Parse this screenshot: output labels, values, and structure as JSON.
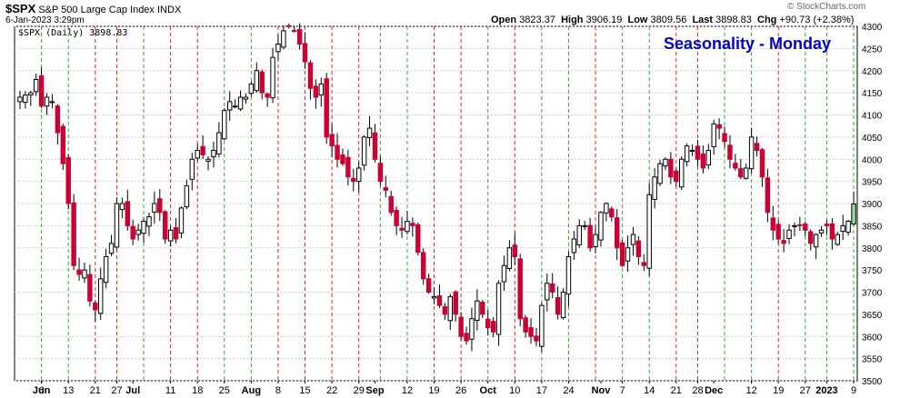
{
  "header": {
    "symbol": "$SPX",
    "description": "S&P 500 Large Cap Index",
    "exchange": "INDX",
    "datetime": "6-Jan-2023 3:29pm",
    "open_label": "Open",
    "open": "3823.37",
    "high_label": "High",
    "high": "3906.19",
    "low_label": "Low",
    "low": "3809.56",
    "last_label": "Last",
    "last": "3898.83",
    "chg_label": "Chg",
    "chg": "+90.73 (+2.38%)",
    "brand": "© StockCharts.com"
  },
  "legend": {
    "text": "$SPX (Daily) 3898.83"
  },
  "annotation": {
    "text": "Seasonality - Monday",
    "color": "#0000cc"
  },
  "colors": {
    "up_fill": "#ffffff",
    "down_fill": "#cc0033",
    "black_candle": "#000000",
    "last_candle": "#99dd99",
    "green_line": "#33aa33",
    "red_line": "#dd2222",
    "grid": "#cccccc"
  },
  "chart_data": {
    "type": "candlestick",
    "y_axis": {
      "min": 3500,
      "max": 4300,
      "ticks": [
        3500,
        3550,
        3600,
        3650,
        3700,
        3750,
        3800,
        3850,
        3900,
        3950,
        4000,
        4050,
        4100,
        4150,
        4200,
        4250,
        4300
      ],
      "position": "right"
    },
    "x_ticks": [
      {
        "label": "Jun",
        "i": 4,
        "bold": true
      },
      {
        "label": "6",
        "i": 4
      },
      {
        "label": "13",
        "i": 9
      },
      {
        "label": "21",
        "i": 14
      },
      {
        "label": "27",
        "i": 18
      },
      {
        "label": "Jul",
        "i": 21,
        "bold": true
      },
      {
        "label": "11",
        "i": 28
      },
      {
        "label": "18",
        "i": 33
      },
      {
        "label": "25",
        "i": 38
      },
      {
        "label": "Aug",
        "i": 43,
        "bold": true
      },
      {
        "label": "8",
        "i": 48
      },
      {
        "label": "15",
        "i": 53
      },
      {
        "label": "22",
        "i": 58
      },
      {
        "label": "29",
        "i": 63
      },
      {
        "label": "Sep",
        "i": 66,
        "bold": true
      },
      {
        "label": "12",
        "i": 72
      },
      {
        "label": "19",
        "i": 77
      },
      {
        "label": "26",
        "i": 82
      },
      {
        "label": "Oct",
        "i": 87,
        "bold": true
      },
      {
        "label": "10",
        "i": 92
      },
      {
        "label": "17",
        "i": 97
      },
      {
        "label": "24",
        "i": 102
      },
      {
        "label": "Nov",
        "i": 108,
        "bold": true
      },
      {
        "label": "7",
        "i": 112
      },
      {
        "label": "14",
        "i": 117
      },
      {
        "label": "21",
        "i": 122
      },
      {
        "label": "28",
        "i": 126
      },
      {
        "label": "Dec",
        "i": 129,
        "bold": true
      },
      {
        "label": "12",
        "i": 136
      },
      {
        "label": "19",
        "i": 141
      },
      {
        "label": "27",
        "i": 146
      },
      {
        "label": "2023",
        "i": 150,
        "bold": true
      },
      {
        "label": "9",
        "i": 155
      }
    ],
    "monday_markers": [
      {
        "i": 4,
        "type": "green"
      },
      {
        "i": 9,
        "type": "green"
      },
      {
        "i": 14,
        "type": "red"
      },
      {
        "i": 18,
        "type": "red"
      },
      {
        "i": 23,
        "type": "green"
      },
      {
        "i": 28,
        "type": "red"
      },
      {
        "i": 33,
        "type": "red"
      },
      {
        "i": 38,
        "type": "green"
      },
      {
        "i": 43,
        "type": "green"
      },
      {
        "i": 48,
        "type": "red"
      },
      {
        "i": 53,
        "type": "red"
      },
      {
        "i": 58,
        "type": "red"
      },
      {
        "i": 63,
        "type": "red"
      },
      {
        "i": 67,
        "type": "green"
      },
      {
        "i": 72,
        "type": "green"
      },
      {
        "i": 77,
        "type": "red"
      },
      {
        "i": 82,
        "type": "red"
      },
      {
        "i": 87,
        "type": "green"
      },
      {
        "i": 92,
        "type": "red"
      },
      {
        "i": 97,
        "type": "green"
      },
      {
        "i": 102,
        "type": "green"
      },
      {
        "i": 107,
        "type": "red"
      },
      {
        "i": 112,
        "type": "green"
      },
      {
        "i": 117,
        "type": "green"
      },
      {
        "i": 122,
        "type": "red"
      },
      {
        "i": 126,
        "type": "red"
      },
      {
        "i": 131,
        "type": "green"
      },
      {
        "i": 136,
        "type": "green"
      },
      {
        "i": 141,
        "type": "red"
      },
      {
        "i": 146,
        "type": "green"
      },
      {
        "i": 150,
        "type": "green"
      },
      {
        "i": 155,
        "type": "green"
      }
    ],
    "closes": [
      4140,
      4145,
      4150,
      4180,
      4120,
      4140,
      4130,
      4060,
      3990,
      3900,
      3760,
      3740,
      3750,
      3680,
      3660,
      3730,
      3780,
      3810,
      3900,
      3900,
      3850,
      3820,
      3840,
      3860,
      3870,
      3900,
      3880,
      3820,
      3840,
      3820,
      3890,
      3940,
      4000,
      4020,
      4010,
      4000,
      4020,
      4060,
      4110,
      4130,
      4120,
      4140,
      4140,
      4170,
      4200,
      4150,
      4140,
      4230,
      4260,
      4290,
      4300,
      4290,
      4260,
      4220,
      4160,
      4140,
      4170,
      4050,
      4030,
      4000,
      3990,
      3960,
      3950,
      3980,
      4050,
      4070,
      4000,
      3950,
      3930,
      3880,
      3850,
      3840,
      3860,
      3850,
      3790,
      3730,
      3700,
      3690,
      3670,
      3650,
      3690,
      3650,
      3600,
      3590,
      3640,
      3680,
      3650,
      3620,
      3610,
      3720,
      3760,
      3800,
      3780,
      3640,
      3610,
      3600,
      3590,
      3670,
      3720,
      3700,
      3650,
      3700,
      3780,
      3820,
      3850,
      3850,
      3800,
      3830,
      3880,
      3900,
      3870,
      3800,
      3760,
      3800,
      3830,
      3780,
      3760,
      3920,
      3960,
      3990,
      4000,
      3960,
      3950,
      4000,
      4030,
      4020,
      4000,
      3980,
      4020,
      4080,
      4070,
      4040,
      4000,
      3980,
      3960,
      3980,
      4050,
      4020,
      3960,
      3880,
      3840,
      3820,
      3810,
      3840,
      3850,
      3850,
      3840,
      3810,
      3830,
      3840,
      3850,
      3820,
      3830,
      3850,
      3860,
      3899
    ],
    "seed": 7
  }
}
